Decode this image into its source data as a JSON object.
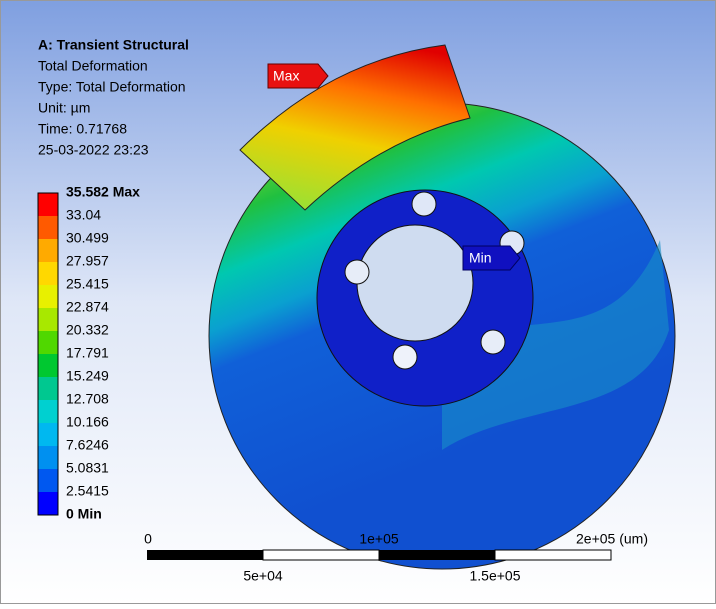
{
  "header": {
    "title": "A: Transient Structural",
    "lines": [
      "Total Deformation",
      "Type: Total Deformation",
      "Unit: µm",
      "Time: 0.71768",
      "25-03-2022 23:23"
    ]
  },
  "legend": {
    "labels": [
      "35.582 Max",
      "33.04",
      "30.499",
      "27.957",
      "25.415",
      "22.874",
      "20.332",
      "17.791",
      "15.249",
      "12.708",
      "10.166",
      "7.6246",
      "5.0831",
      "2.5415",
      "0 Min"
    ]
  },
  "probes": {
    "max": "Max",
    "min": "Min"
  },
  "scale_bar": {
    "top_labels": [
      "0",
      "1e+05",
      "2e+05 (um)"
    ],
    "bottom_labels": [
      "5e+04",
      "1.5e+05"
    ]
  }
}
